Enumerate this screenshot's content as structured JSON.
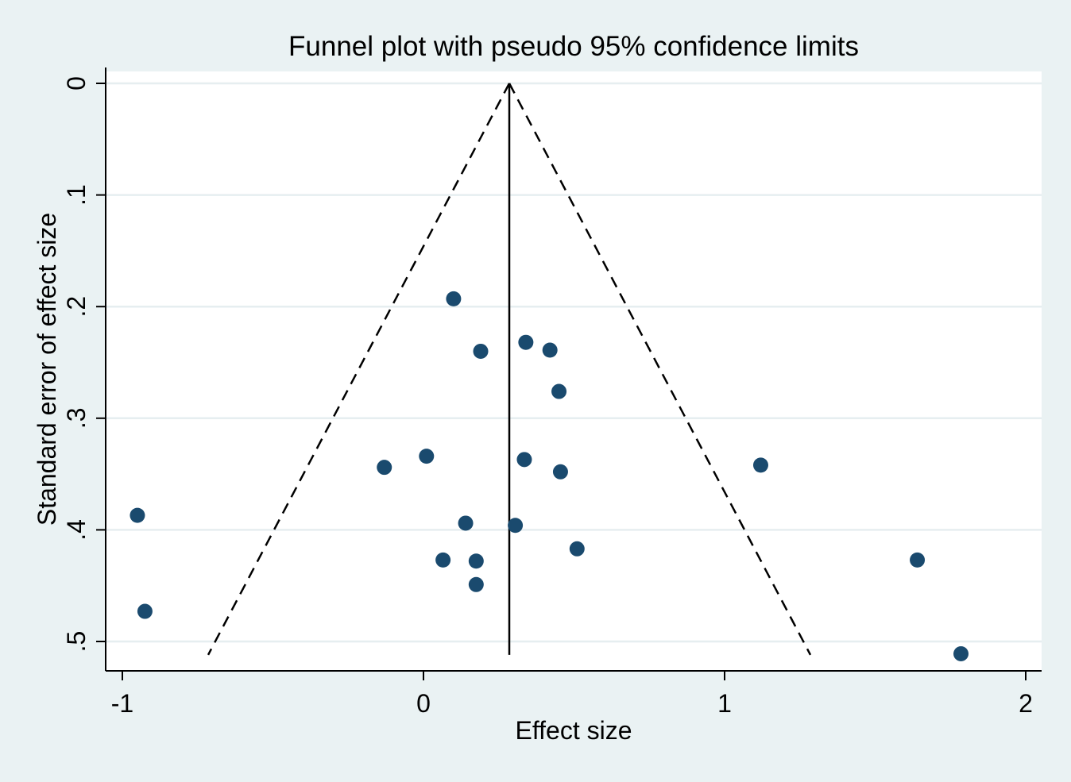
{
  "chart_data": {
    "type": "scatter",
    "title": "Funnel plot with pseudo 95% confidence limits",
    "xlabel": "Effect size",
    "ylabel": "Standard error of effect size",
    "xlim": [
      -1.05,
      2.05
    ],
    "ylim": [
      0,
      0.525
    ],
    "y_reversed": true,
    "x_ticks": [
      -1,
      0,
      1,
      2
    ],
    "x_tick_labels": [
      "-1",
      "0",
      "1",
      "2"
    ],
    "y_ticks": [
      0,
      0.1,
      0.2,
      0.3,
      0.4,
      0.5
    ],
    "y_tick_labels": [
      "0",
      ".1",
      ".2",
      ".3",
      ".4",
      ".5"
    ],
    "grid": "horizontal",
    "pooled_effect": 0.285,
    "funnel_limits": {
      "apex": [
        0.285,
        0
      ],
      "lower_left": [
        -0.715,
        0.512
      ],
      "lower_right": [
        1.285,
        0.512
      ]
    },
    "point_color": "#1a4a6e",
    "points": [
      {
        "x": 0.1,
        "y": 0.193
      },
      {
        "x": 0.19,
        "y": 0.24
      },
      {
        "x": 0.34,
        "y": 0.232
      },
      {
        "x": 0.42,
        "y": 0.239
      },
      {
        "x": 0.45,
        "y": 0.276
      },
      {
        "x": 0.01,
        "y": 0.334
      },
      {
        "x": -0.13,
        "y": 0.344
      },
      {
        "x": 0.335,
        "y": 0.337
      },
      {
        "x": 0.455,
        "y": 0.348
      },
      {
        "x": 1.12,
        "y": 0.342
      },
      {
        "x": -0.95,
        "y": 0.387
      },
      {
        "x": 0.14,
        "y": 0.394
      },
      {
        "x": 0.305,
        "y": 0.396
      },
      {
        "x": 0.51,
        "y": 0.417
      },
      {
        "x": 0.065,
        "y": 0.427
      },
      {
        "x": 0.175,
        "y": 0.428
      },
      {
        "x": 0.175,
        "y": 0.449
      },
      {
        "x": 1.64,
        "y": 0.427
      },
      {
        "x": -0.925,
        "y": 0.473
      },
      {
        "x": 1.785,
        "y": 0.511
      }
    ]
  }
}
